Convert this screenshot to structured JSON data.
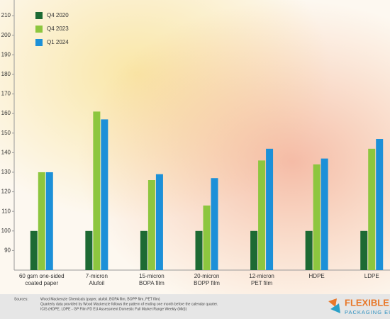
{
  "chart_data": {
    "type": "bar",
    "categories": [
      [
        "60 gsm one-sided",
        "coated paper"
      ],
      [
        "7-micron",
        "Alufoil"
      ],
      [
        "15-micron",
        "BOPA film"
      ],
      [
        "20-micron",
        "BOPP film"
      ],
      [
        "12-micron",
        "PET film"
      ],
      [
        "HDPE"
      ],
      [
        "LDPE"
      ]
    ],
    "series": [
      {
        "name": "Q4 2020",
        "color": "#1d6a33",
        "values": [
          100,
          100,
          100,
          100,
          100,
          100,
          100
        ]
      },
      {
        "name": "Q4 2023",
        "color": "#8dc63f",
        "values": [
          130,
          161,
          126,
          113,
          136,
          134,
          142
        ]
      },
      {
        "name": "Q1 2024",
        "color": "#1c90d8",
        "values": [
          130,
          157,
          129,
          127,
          142,
          137,
          147
        ]
      }
    ],
    "ylim": [
      80,
      218
    ],
    "yticks": [
      90,
      100,
      110,
      120,
      130,
      140,
      150,
      160,
      170,
      180,
      190,
      200,
      210
    ],
    "grid": false,
    "legend": "upper left"
  },
  "footer": {
    "label": "Sources:",
    "lines": [
      "Wood Mackenzie Chemicals (paper, alufoil, BOPA film, BOPP film, PET film)",
      "Quarterly data provided by Wood Mackenzie follows the pattern of ending one month before the calendar quarter.",
      "ICIS (HDPE, LDPE - GP Film FD EU Assessment Domestic Full Market Range Weekly (Mid))"
    ],
    "logo": [
      "FLEXIBLE",
      "PACKAGING EUROPE"
    ]
  }
}
